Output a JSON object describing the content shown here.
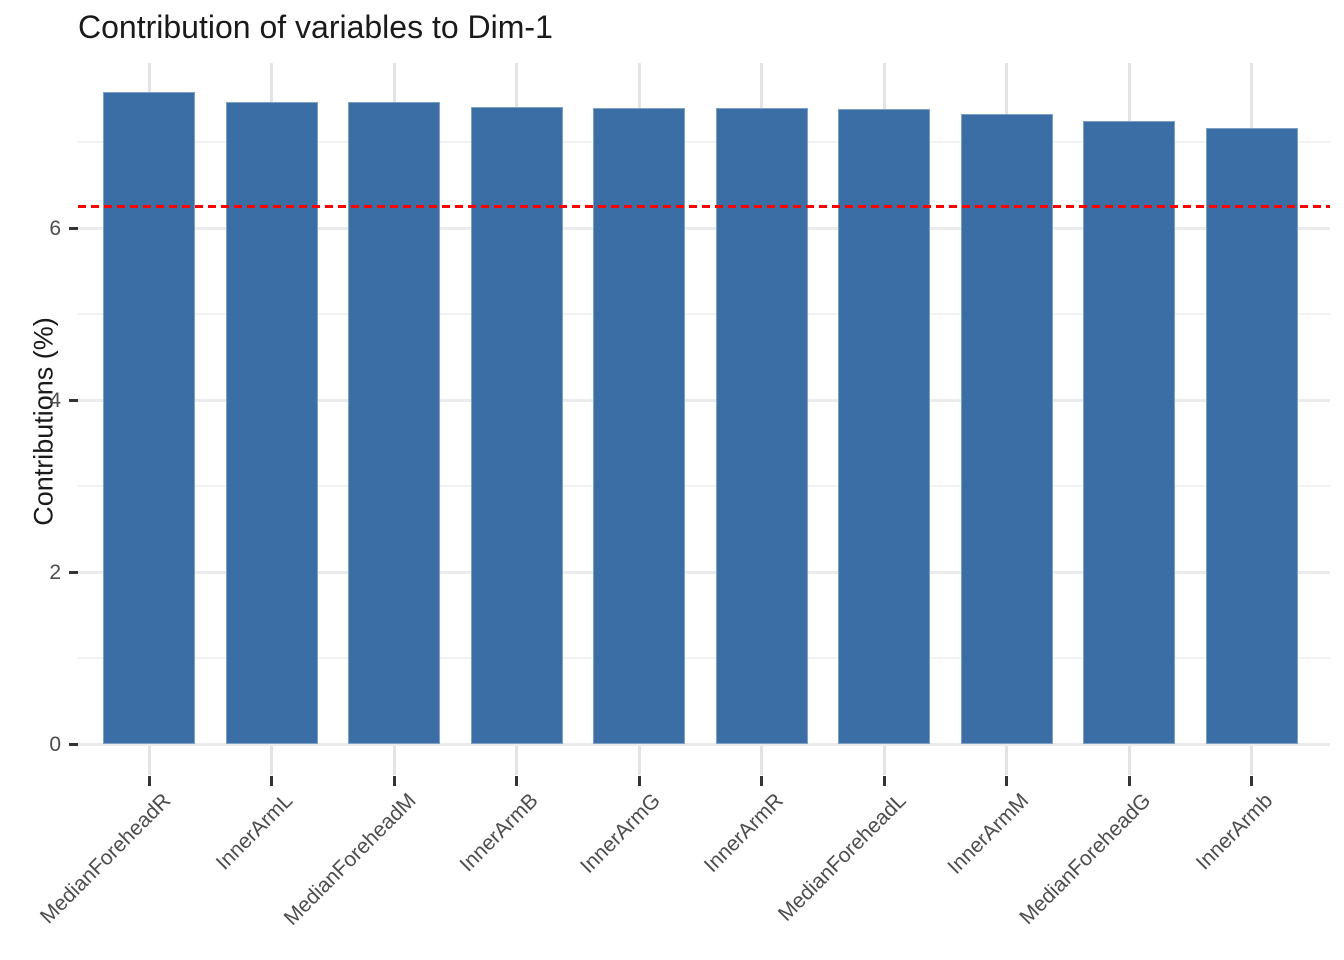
{
  "chart_data": {
    "type": "bar",
    "title": "Contribution of variables to Dim-1",
    "xlabel": "",
    "ylabel": "Contributions (%)",
    "categories": [
      "MedianForeheadR",
      "InnerArmL",
      "MedianForeheadM",
      "InnerArmB",
      "InnerArmG",
      "InnerArmR",
      "MedianForeheadL",
      "InnerArmM",
      "MedianForeheadG",
      "InnerArmb"
    ],
    "values": [
      7.58,
      7.47,
      7.46,
      7.41,
      7.4,
      7.39,
      7.38,
      7.33,
      7.24,
      7.16
    ],
    "reference_line": 6.25,
    "reference_line_style": "dashed",
    "ylim": [
      0,
      7.92
    ],
    "yticks": [
      0,
      2,
      4,
      6
    ],
    "minor_yticks": [
      1,
      3,
      5,
      7
    ],
    "grid": true,
    "legend": "none",
    "colors": {
      "bar_fill": "#3A6EA5",
      "bar_edge": "#7FA0C5",
      "reference_line": "#FF0000",
      "grid_major": "#EBEBEB",
      "grid_minor": "#F2F2F2",
      "grid_vertical": "#E3E3E3",
      "axis_text": "#4D4D4D",
      "title_text": "#1A1A1A"
    }
  }
}
